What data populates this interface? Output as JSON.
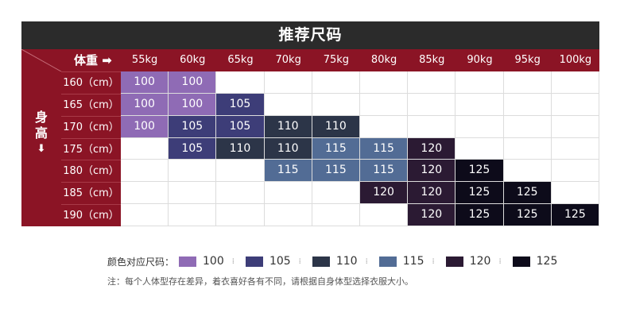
{
  "title": "推荐尺码",
  "weight_label": "体重 ➡",
  "height_label": [
    "身",
    "高",
    "⬇"
  ],
  "weights": [
    "55kg",
    "60kg",
    "65kg",
    "70kg",
    "75kg",
    "80kg",
    "85kg",
    "90kg",
    "95kg",
    "100kg"
  ],
  "heights": [
    "160（cm）",
    "165（cm）",
    "170（cm）",
    "175（cm）",
    "180（cm）",
    "185（cm）",
    "190（cm）"
  ],
  "size_colors": {
    "100": "#8f6bb5",
    "105": "#3d3d78",
    "110": "#2c3548",
    "115": "#526c95",
    "120": "#2b1a33",
    "125": "#0d0b1a"
  },
  "table": [
    [
      "100",
      "100",
      "",
      "",
      "",
      "",
      "",
      "",
      "",
      ""
    ],
    [
      "100",
      "100",
      "105",
      "",
      "",
      "",
      "",
      "",
      "",
      ""
    ],
    [
      "100",
      "105",
      "105",
      "110",
      "110",
      "",
      "",
      "",
      "",
      ""
    ],
    [
      "",
      "105",
      "110",
      "110",
      "115",
      "115",
      "120",
      "",
      "",
      ""
    ],
    [
      "",
      "",
      "",
      "115",
      "115",
      "115",
      "120",
      "125",
      "",
      ""
    ],
    [
      "",
      "",
      "",
      "",
      "",
      "120",
      "120",
      "125",
      "125",
      ""
    ],
    [
      "",
      "",
      "",
      "",
      "",
      "",
      "120",
      "125",
      "125",
      "125"
    ]
  ],
  "legend": {
    "label": "颜色对应尺码：",
    "items": [
      "100",
      "105",
      "110",
      "115",
      "120",
      "125"
    ]
  },
  "note": "注：每个人体型存在差异，着衣喜好各有不同，请根据自身体型选择衣服大小。"
}
